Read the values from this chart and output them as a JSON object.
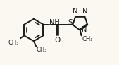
{
  "bg_color": "#faf8f0",
  "bond_color": "#1a1a1a",
  "bond_lw": 1.4,
  "font_size": 6.5,
  "font_color": "#1a1a1a",
  "figsize": [
    1.69,
    0.92
  ],
  "dpi": 100,
  "xlim": [
    0.0,
    1.0
  ],
  "ylim": [
    0.0,
    1.0
  ]
}
